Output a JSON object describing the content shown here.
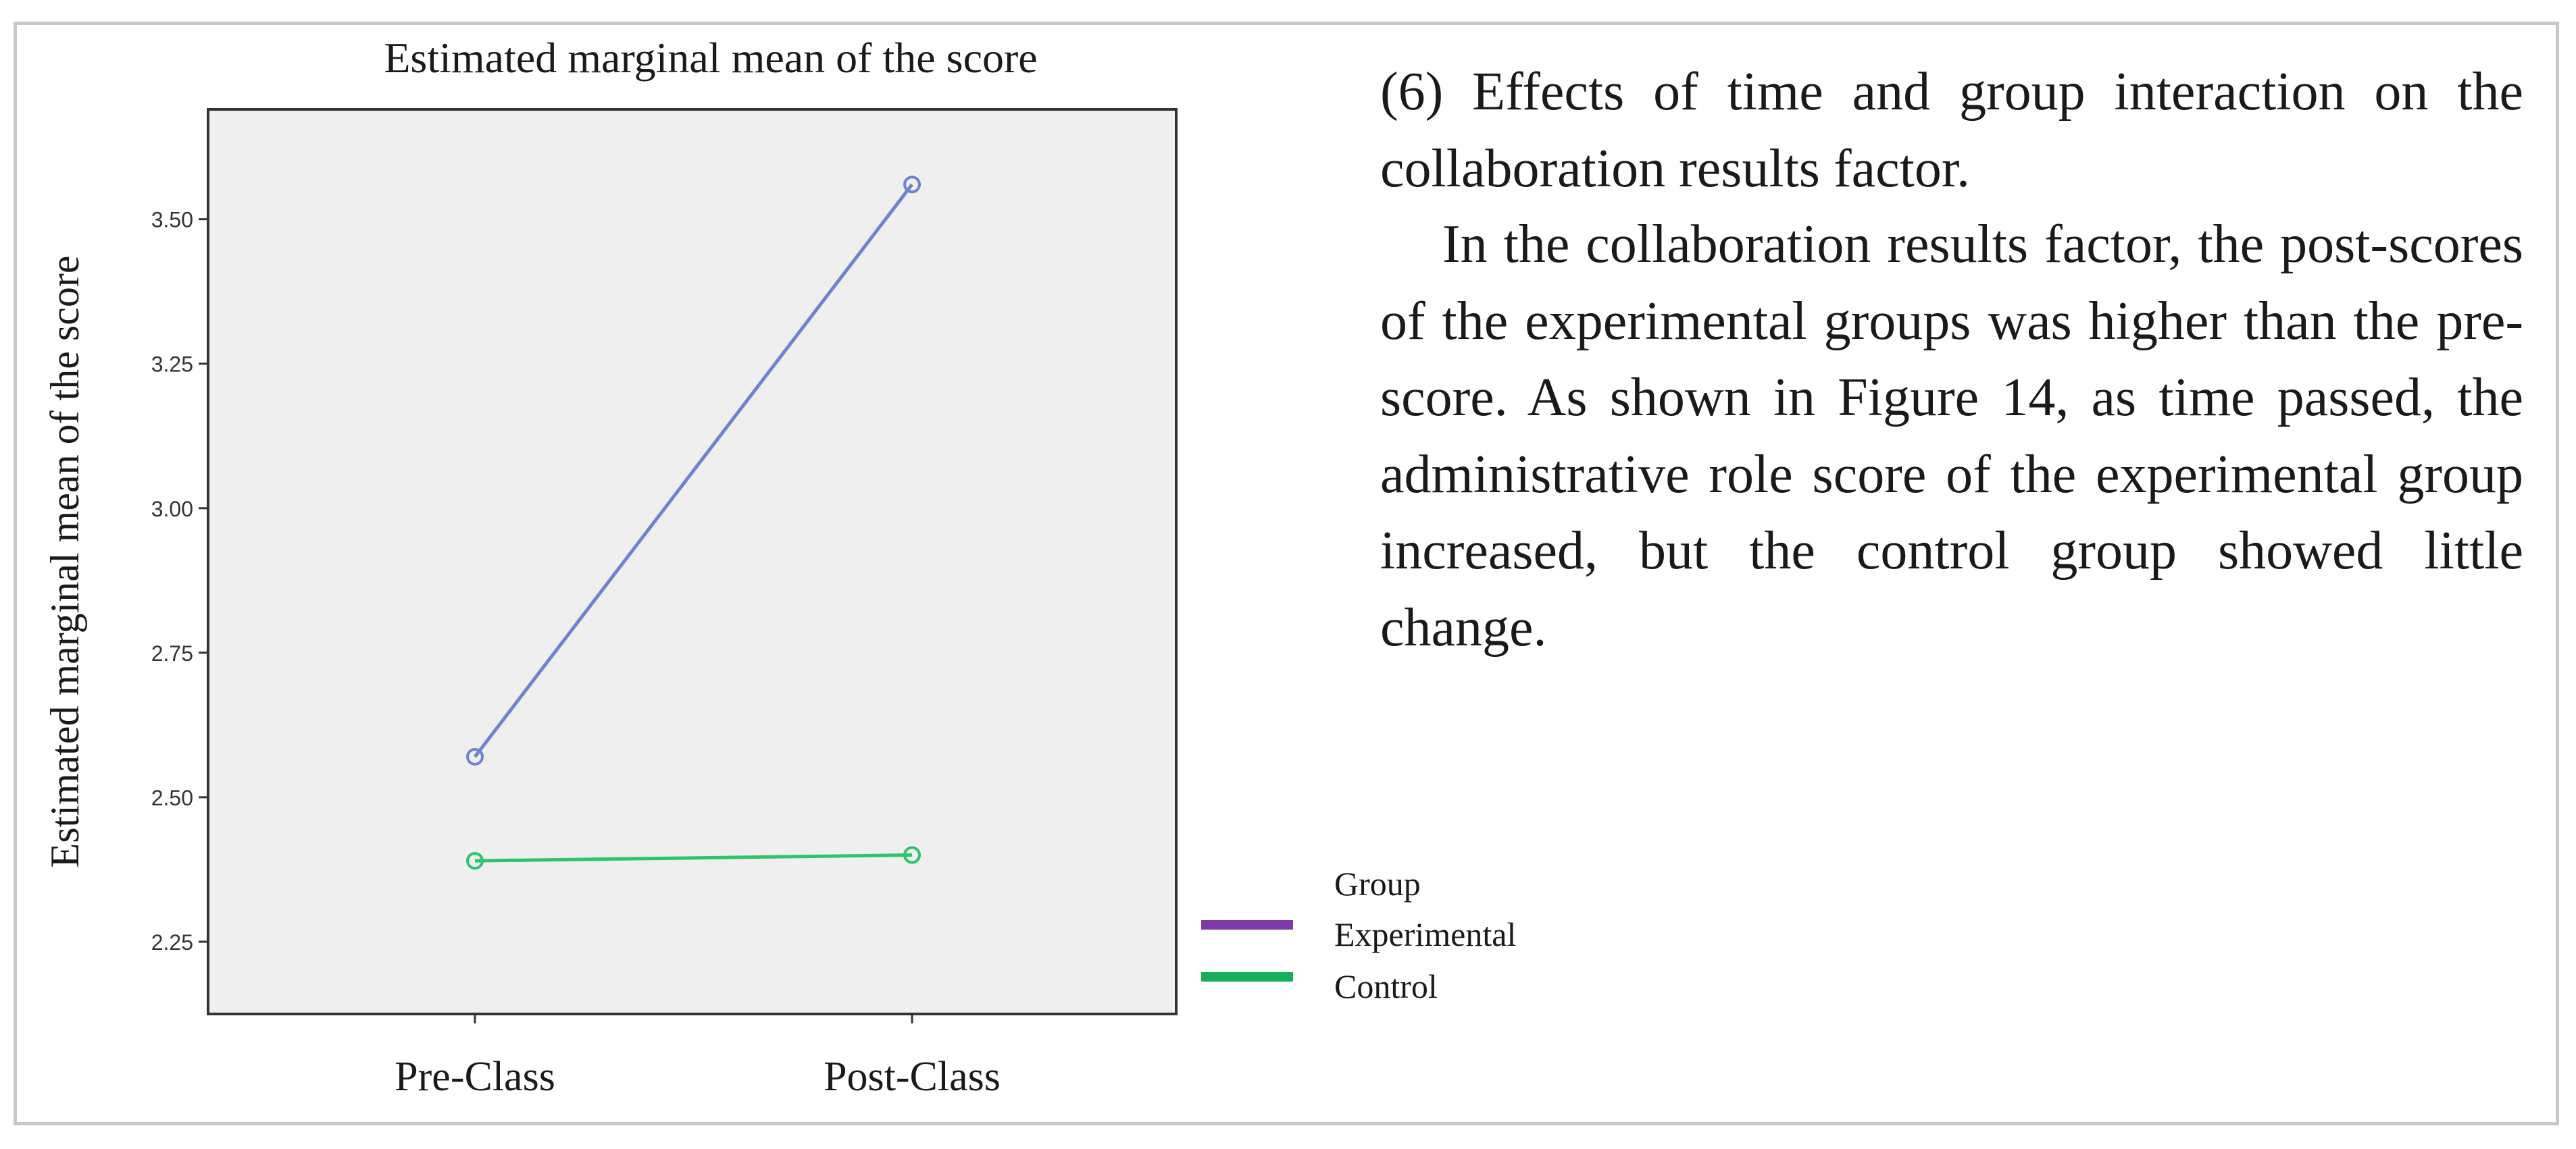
{
  "figure": {
    "text": {
      "paragraphs": [
        "(6) Effects of time and group interaction on the collaboration results factor.",
        "In the collaboration results factor, the post-scores of the experimental groups was higher than the pre-score. As shown in Figure 14, as time passed, the administrative role score of the experimental group increased, but the control group showed little change."
      ]
    },
    "colors": {
      "plot_background": "#efefef",
      "frame_border": "#c8c8c8",
      "axis": "#333333",
      "text": "#1a1a1a"
    }
  },
  "chart_data": {
    "type": "line",
    "title": "Estimated marginal mean of the score",
    "xlabel": "",
    "ylabel": "Estimated marginal mean of the score",
    "categories": [
      "Pre-Class",
      "Post-Class"
    ],
    "ylim": [
      2.125,
      3.69
    ],
    "yticks": [
      2.25,
      2.5,
      2.75,
      3.0,
      3.25,
      3.5
    ],
    "ytick_labels": [
      "2.25",
      "2.50",
      "2.75",
      "3.00",
      "3.25",
      "3.50"
    ],
    "grid": false,
    "legend_title": "Group",
    "legend_position": "right",
    "series": [
      {
        "name": "Experimental",
        "values": [
          2.57,
          3.56
        ],
        "color": "#6c84cf",
        "legend_color": "#7b3aa8",
        "marker": "circle"
      },
      {
        "name": "Control",
        "values": [
          2.39,
          2.4
        ],
        "color": "#2ec46b",
        "legend_color": "#16b05a",
        "marker": "circle"
      }
    ]
  }
}
